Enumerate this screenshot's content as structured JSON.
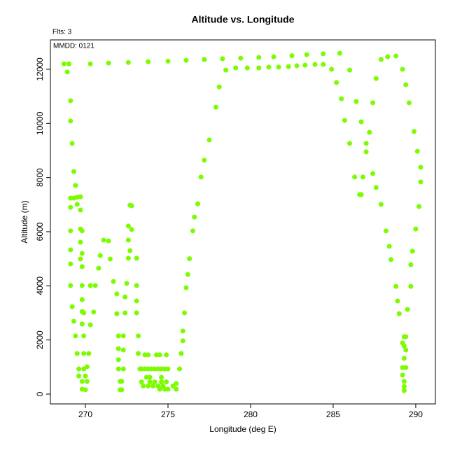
{
  "chart_data": {
    "type": "scatter",
    "title": "Altitude vs. Longitude",
    "flights_label": "Flts: 3",
    "date_label": "MMDD: 0121",
    "x_label": "Longitude (deg E)",
    "y_label": "Altitude (m)",
    "color": "#7cfc00",
    "xlim": [
      267.88,
      291.19
    ],
    "ylim": [
      -362,
      13085
    ],
    "xticks": [
      270,
      275,
      280,
      285,
      290
    ],
    "yticks": [
      0,
      2000,
      4000,
      6000,
      8000,
      10000,
      12000
    ],
    "x": [
      268.7,
      269.0,
      268.9,
      270.3,
      271.4,
      272.6,
      273.8,
      275.0,
      276.1,
      277.2,
      278.3,
      279.4,
      280.5,
      281.4,
      282.5,
      283.4,
      284.4,
      285.4,
      278.5,
      279.1,
      279.8,
      280.5,
      281.1,
      281.7,
      282.3,
      282.8,
      283.3,
      283.9,
      284.4,
      284.9,
      285.2,
      285.5,
      285.7,
      286.0,
      286.0,
      286.4,
      286.7,
      287.0,
      287.0,
      287.2,
      287.4,
      287.6,
      287.9,
      288.3,
      288.8,
      289.2,
      289.4,
      289.6,
      289.9,
      290.1,
      290.3,
      290.3,
      290.2,
      290.0,
      289.8,
      289.7,
      289.7,
      289.5,
      289.3,
      289.4,
      289.3,
      289.4,
      289.3,
      289.4,
      289.2,
      289.3,
      289.3,
      289.3,
      289.2,
      289.2,
      286.3,
      286.8,
      286.6,
      286.7,
      287.4,
      287.6,
      287.9,
      288.2,
      288.4,
      288.5,
      288.8,
      288.9,
      289.0,
      269.1,
      269.1,
      269.2,
      269.3,
      269.4,
      269.1,
      269.3,
      269.5,
      269.7,
      269.5,
      269.7,
      269.1,
      269.1,
      269.7,
      269.8,
      269.7,
      269.1,
      269.8,
      269.7,
      269.1,
      269.8,
      269.1,
      269.8,
      269.2,
      269.8,
      269.8,
      269.9,
      269.3,
      269.8,
      269.4,
      269.9,
      270.3,
      270.5,
      270.3,
      270.6,
      269.5,
      269.9,
      270.2,
      269.6,
      269.9,
      270.1,
      269.6,
      270.0,
      269.8,
      270.1,
      269.8,
      270.0,
      270.8,
      270.9,
      271.1,
      271.4,
      271.5,
      271.7,
      271.9,
      271.9,
      272.0,
      272.0,
      272.0,
      272.0,
      272.1,
      272.1,
      272.3,
      272.3,
      272.3,
      272.2,
      272.2,
      272.4,
      272.5,
      272.4,
      272.6,
      272.7,
      272.8,
      272.8,
      272.6,
      272.6,
      273.1,
      272.7,
      273.1,
      273.1,
      273.1,
      273.2,
      273.2,
      273.3,
      273.6,
      273.8,
      274.3,
      274.5,
      274.9,
      273.4,
      273.6,
      273.8,
      274.0,
      274.2,
      274.4,
      274.6,
      274.8,
      275.0,
      273.7,
      273.9,
      274.6,
      273.4,
      273.9,
      274.2,
      274.6,
      274.9,
      273.5,
      273.8,
      274.1,
      274.4,
      274.7,
      275.3,
      274.5,
      274.8,
      275.0,
      275.5,
      275.7,
      275.8,
      275.9,
      275.9,
      276.0,
      276.1,
      276.2,
      276.3,
      276.5,
      276.6,
      276.8,
      277.0,
      277.2,
      277.5,
      277.9,
      278.1,
      275.5
    ],
    "values": [
      12200,
      12200,
      11900,
      12200,
      12230,
      12250,
      12280,
      12300,
      12330,
      12360,
      12390,
      12410,
      12440,
      12460,
      12500,
      12540,
      12570,
      12590,
      11970,
      12050,
      12050,
      12050,
      12080,
      12080,
      12100,
      12130,
      12150,
      12180,
      12180,
      12000,
      11510,
      10910,
      10110,
      9260,
      11970,
      10810,
      10060,
      9260,
      8950,
      9670,
      10760,
      11660,
      12360,
      12460,
      12490,
      12000,
      11430,
      10760,
      9700,
      8970,
      8380,
      7840,
      6930,
      6100,
      5280,
      4780,
      3980,
      3130,
      2120,
      2120,
      1780,
      1630,
      1320,
      980,
      980,
      470,
      280,
      130,
      700,
      1890,
      8020,
      8020,
      7370,
      7370,
      8150,
      7630,
      7010,
      6030,
      5460,
      4970,
      3980,
      3440,
      2970,
      10840,
      10090,
      9260,
      8220,
      7710,
      7240,
      7240,
      7270,
      7290,
      7010,
      6800,
      6900,
      6030,
      6100,
      6030,
      5610,
      5330,
      5200,
      4990,
      4810,
      4710,
      4010,
      4010,
      3230,
      3490,
      3050,
      3000,
      2690,
      2590,
      2150,
      2150,
      2560,
      3030,
      4010,
      4010,
      1500,
      1500,
      1500,
      930,
      930,
      1010,
      670,
      670,
      470,
      470,
      180,
      160,
      4650,
      5120,
      5690,
      5660,
      4990,
      4160,
      3700,
      2970,
      2150,
      1680,
      1270,
      930,
      470,
      160,
      2150,
      1630,
      930,
      470,
      160,
      3590,
      4090,
      3000,
      6210,
      6980,
      6960,
      6080,
      5690,
      5020,
      5020,
      5300,
      4010,
      3440,
      3000,
      2150,
      1500,
      930,
      1450,
      1450,
      1450,
      1450,
      1450,
      930,
      930,
      930,
      930,
      930,
      930,
      930,
      930,
      930,
      620,
      620,
      620,
      450,
      450,
      450,
      450,
      450,
      300,
      300,
      300,
      300,
      300,
      300,
      180,
      180,
      180,
      180,
      930,
      1500,
      1970,
      2330,
      3000,
      3930,
      4420,
      5000,
      6030,
      6540,
      7030,
      8020,
      8640,
      9390,
      10600,
      11350,
      390
    ]
  }
}
